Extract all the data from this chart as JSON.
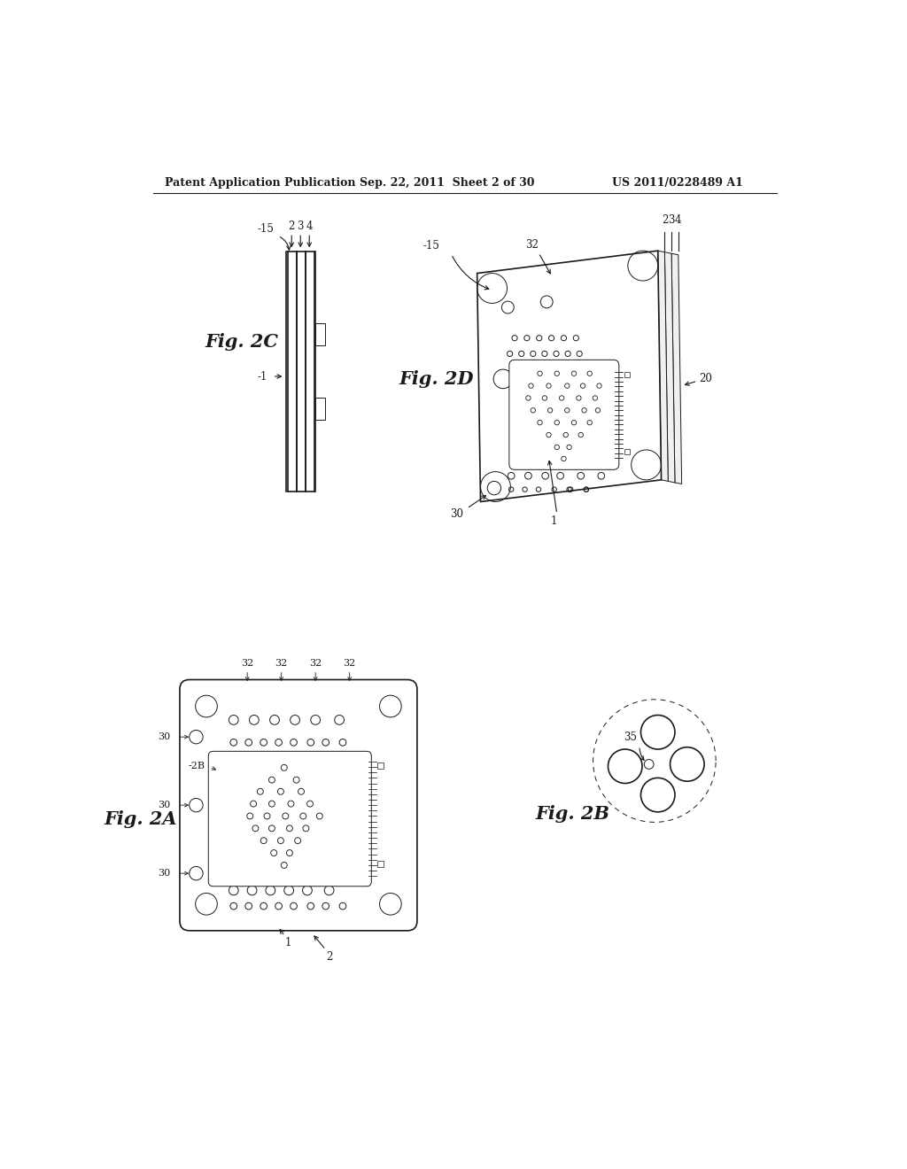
{
  "bg_color": "#ffffff",
  "header_left": "Patent Application Publication",
  "header_mid": "Sep. 22, 2011  Sheet 2 of 30",
  "header_right": "US 2011/0228489 A1",
  "fig2c_label": "Fig. 2C",
  "fig2d_label": "Fig. 2D",
  "fig2a_label": "Fig. 2A",
  "fig2b_label": "Fig. 2B",
  "line_color": "#1a1a1a"
}
